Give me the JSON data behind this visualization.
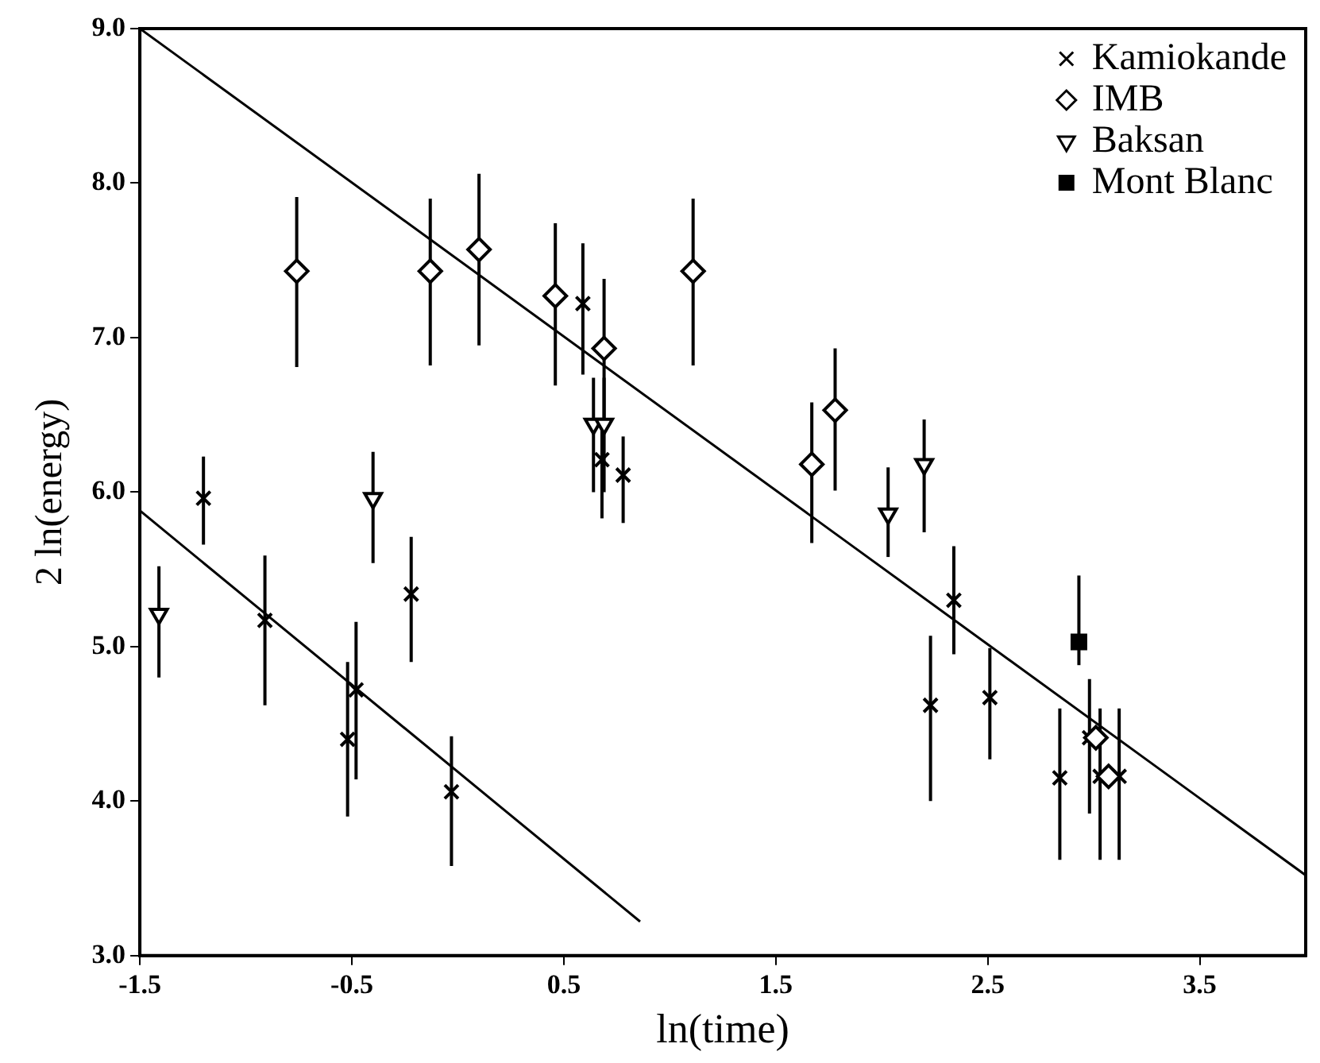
{
  "chart_data": {
    "type": "scatter",
    "xlabel": "ln(time)",
    "ylabel": "2 ln(energy)",
    "xlim": [
      -1.5,
      4.0
    ],
    "ylim": [
      3.0,
      9.0
    ],
    "xticks": [
      -1.5,
      -0.5,
      0.5,
      1.5,
      2.5,
      3.5
    ],
    "yticks": [
      {
        "value": 3,
        "label": "3.0"
      },
      {
        "value": 4,
        "label": "4.0"
      },
      {
        "value": 5,
        "label": "5.0"
      },
      {
        "value": 6,
        "label": "6.0"
      },
      {
        "value": 7,
        "label": "7.0"
      },
      {
        "value": 8,
        "label": "8.0"
      },
      {
        "value": 9,
        "label": "9.0"
      }
    ],
    "grid": false,
    "legend": "top right",
    "series": [
      {
        "name": "Kamiokande",
        "color": "#000000",
        "marker": "cross",
        "x": [
          -1.2,
          -0.91,
          -0.48,
          -0.52,
          -0.22,
          -0.03,
          0.59,
          0.68,
          0.78,
          2.23,
          2.34,
          2.51,
          2.84,
          2.98,
          3.03,
          3.12
        ],
        "values": [
          5.96,
          5.17,
          4.72,
          4.4,
          5.34,
          4.06,
          7.22,
          6.21,
          6.11,
          4.62,
          5.3,
          4.67,
          4.15,
          4.41,
          4.16,
          4.16
        ],
        "errors": [
          [
            5.66,
            6.23
          ],
          [
            4.62,
            5.59
          ],
          [
            4.14,
            5.16
          ],
          [
            3.9,
            4.9
          ],
          [
            4.9,
            5.71
          ],
          [
            3.58,
            4.42
          ],
          [
            6.76,
            7.61
          ],
          [
            5.83,
            6.45
          ],
          [
            5.8,
            6.36
          ],
          [
            4.0,
            5.07
          ],
          [
            4.95,
            5.65
          ],
          [
            4.27,
            4.99
          ],
          [
            3.62,
            4.6
          ],
          [
            3.92,
            4.79
          ],
          [
            3.62,
            4.6
          ],
          [
            3.62,
            4.6
          ]
        ]
      },
      {
        "name": "IMB",
        "color": "#000000",
        "marker": "diamond",
        "x": [
          -0.76,
          -0.13,
          0.1,
          0.46,
          0.69,
          1.11,
          1.67,
          1.78,
          3.01,
          3.07
        ],
        "values": [
          7.43,
          7.43,
          7.57,
          7.27,
          6.93,
          7.43,
          6.18,
          6.53,
          4.41,
          4.16
        ],
        "errors": [
          [
            6.81,
            7.91
          ],
          [
            6.82,
            7.9
          ],
          [
            6.95,
            8.06
          ],
          [
            6.69,
            7.74
          ],
          [
            6.45,
            7.38
          ],
          [
            6.82,
            7.9
          ],
          [
            5.67,
            6.58
          ],
          [
            6.01,
            6.93
          ],
          null,
          null
        ]
      },
      {
        "name": "Baksan",
        "color": "#000000",
        "marker": "triangle",
        "x": [
          -1.41,
          -0.4,
          0.64,
          0.69,
          2.03,
          2.2
        ],
        "values": [
          5.21,
          5.96,
          6.44,
          6.44,
          5.86,
          6.18
        ],
        "errors": [
          [
            4.8,
            5.52
          ],
          [
            5.54,
            6.26
          ],
          [
            6.0,
            6.74
          ],
          [
            6.0,
            6.74
          ],
          [
            5.58,
            6.16
          ],
          [
            5.74,
            6.47
          ]
        ]
      },
      {
        "name": "Mont Blanc",
        "color": "#000000",
        "marker": "square",
        "x": [
          2.93
        ],
        "values": [
          5.03
        ],
        "errors": [
          [
            4.88,
            5.46
          ]
        ]
      },
      {
        "type": "line",
        "color": "#000000",
        "marker": "none",
        "x": [
          -1.5,
          4.0
        ],
        "values": [
          9.0,
          3.52
        ]
      },
      {
        "type": "line",
        "color": "#000000",
        "marker": "none",
        "x": [
          -1.5,
          0.86
        ],
        "values": [
          5.88,
          3.22
        ]
      }
    ]
  }
}
